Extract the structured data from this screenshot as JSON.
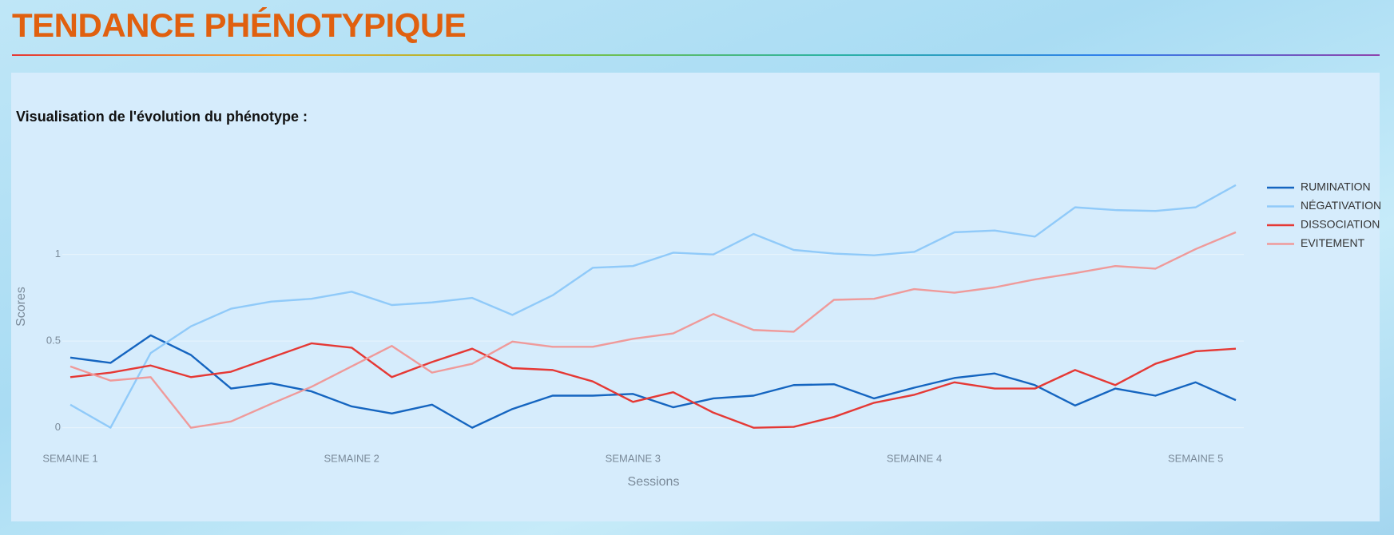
{
  "header": {
    "title": "TENDANCE PHÉNOTYPIQUE"
  },
  "chart_data": {
    "type": "line",
    "title": "Visualisation de l'évolution du phénotype :",
    "x_label": "Sessions",
    "y_label": "Scores",
    "x": [
      0,
      1,
      2,
      3,
      4,
      5,
      6,
      7,
      8,
      9,
      10,
      11,
      12,
      13,
      14,
      15,
      16,
      17,
      18,
      19,
      20,
      21,
      22,
      23,
      24,
      25,
      26,
      27,
      28,
      29
    ],
    "xlim": [
      0,
      29
    ],
    "xticks": [
      {
        "value": 0,
        "label": "SEMAINE 1"
      },
      {
        "value": 7,
        "label": "SEMAINE 2"
      },
      {
        "value": 14,
        "label": "SEMAINE 3"
      },
      {
        "value": 21,
        "label": "SEMAINE 4"
      },
      {
        "value": 28,
        "label": "SEMAINE 5"
      }
    ],
    "ylim": [
      -0.08,
      1.45
    ],
    "yticks": [
      0,
      0.5,
      1
    ],
    "grid": true,
    "series": [
      {
        "name": "RUMINATION",
        "color": "#1565c0",
        "values": [
          0.405,
          0.374,
          0.533,
          0.42,
          0.226,
          0.256,
          0.21,
          0.123,
          0.082,
          0.133,
          0,
          0.108,
          0.185,
          0.185,
          0.195,
          0.118,
          0.169,
          0.185,
          0.246,
          0.251,
          0.169,
          0.231,
          0.287,
          0.313,
          0.246,
          0.128,
          0.226,
          0.185,
          0.262,
          0.159
        ]
      },
      {
        "name": "NÉGATIVATION",
        "color": "#90caf9",
        "values": [
          0.133,
          0,
          0.431,
          0.585,
          0.687,
          0.728,
          0.744,
          0.785,
          0.708,
          0.723,
          0.749,
          0.651,
          0.764,
          0.923,
          0.933,
          1.01,
          1.0,
          1.118,
          1.026,
          1.005,
          0.995,
          1.015,
          1.128,
          1.138,
          1.103,
          1.272,
          1.256,
          1.251,
          1.272,
          1.4
        ]
      },
      {
        "name": "DISSOCIATION",
        "color": "#e53935",
        "values": [
          0.292,
          0.318,
          0.359,
          0.292,
          0.323,
          0.405,
          0.487,
          0.462,
          0.292,
          0.379,
          0.456,
          0.344,
          0.333,
          0.267,
          0.149,
          0.205,
          0.087,
          0,
          0.005,
          0.062,
          0.144,
          0.19,
          0.262,
          0.226,
          0.226,
          0.333,
          0.246,
          0.369,
          0.441,
          0.456
        ]
      },
      {
        "name": "EVITEMENT",
        "color": "#ef9a9a",
        "values": [
          0.354,
          0.272,
          0.292,
          0,
          0.036,
          0.138,
          0.236,
          0.354,
          0.472,
          0.318,
          0.369,
          0.497,
          0.467,
          0.467,
          0.513,
          0.544,
          0.656,
          0.564,
          0.554,
          0.738,
          0.744,
          0.8,
          0.779,
          0.81,
          0.856,
          0.892,
          0.933,
          0.918,
          1.031,
          1.128
        ]
      }
    ],
    "legend": "right"
  }
}
